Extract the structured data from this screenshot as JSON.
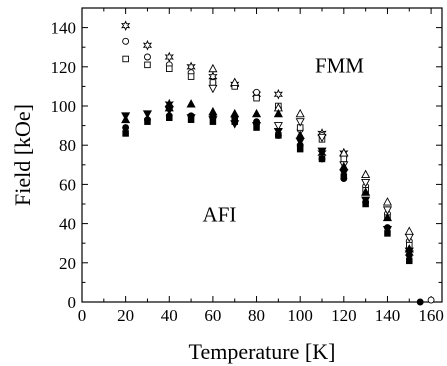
{
  "chart_data": {
    "type": "scatter",
    "title": "",
    "xlabel": "Temperature [K]",
    "ylabel": "Field [kOe]",
    "xlim": [
      0,
      165
    ],
    "ylim": [
      0,
      150
    ],
    "x_ticks": [
      0,
      20,
      40,
      60,
      80,
      100,
      120,
      140,
      160
    ],
    "y_ticks": [
      0,
      20,
      40,
      60,
      80,
      100,
      120,
      140
    ],
    "grid": false,
    "legend": "none",
    "annotations": [
      {
        "text": "FMM",
        "x": 118,
        "y": 117
      },
      {
        "text": "AFI",
        "x": 63,
        "y": 41
      }
    ],
    "series": [
      {
        "marker": "star-open",
        "points": [
          [
            20,
            141
          ],
          [
            30,
            131
          ],
          [
            40,
            125
          ],
          [
            50,
            120
          ],
          [
            60,
            115
          ],
          [
            70,
            111
          ],
          [
            80,
            106
          ],
          [
            90,
            106
          ],
          [
            110,
            86
          ],
          [
            120,
            76
          ]
        ]
      },
      {
        "marker": "circle-open",
        "points": [
          [
            20,
            133
          ],
          [
            30,
            125
          ],
          [
            40,
            121
          ],
          [
            50,
            117
          ],
          [
            60,
            112
          ],
          [
            70,
            111
          ],
          [
            80,
            107
          ],
          [
            90,
            99
          ],
          [
            100,
            88
          ],
          [
            110,
            85
          ],
          [
            120,
            74
          ],
          [
            130,
            59
          ],
          [
            140,
            45
          ],
          [
            150,
            31
          ],
          [
            160,
            1
          ]
        ]
      },
      {
        "marker": "square-open",
        "points": [
          [
            20,
            124
          ],
          [
            30,
            121
          ],
          [
            40,
            119
          ],
          [
            50,
            115
          ],
          [
            60,
            112
          ],
          [
            70,
            110
          ],
          [
            80,
            104
          ],
          [
            90,
            100
          ],
          [
            100,
            89
          ],
          [
            110,
            83
          ],
          [
            120,
            73
          ],
          [
            130,
            57
          ],
          [
            140,
            43
          ],
          [
            150,
            29
          ]
        ]
      },
      {
        "marker": "triangle-up-open",
        "points": [
          [
            60,
            119
          ],
          [
            70,
            112
          ],
          [
            90,
            99
          ],
          [
            100,
            96
          ],
          [
            120,
            76
          ],
          [
            130,
            65
          ],
          [
            140,
            51
          ],
          [
            150,
            36
          ]
        ]
      },
      {
        "marker": "triangle-down-open",
        "points": [
          [
            60,
            109
          ],
          [
            90,
            90
          ],
          [
            100,
            92
          ],
          [
            110,
            84
          ],
          [
            120,
            70
          ],
          [
            130,
            61
          ],
          [
            140,
            47
          ],
          [
            150,
            33
          ]
        ]
      },
      {
        "marker": "triangle-down-filled",
        "points": [
          [
            20,
            95
          ],
          [
            30,
            96
          ],
          [
            40,
            98
          ],
          [
            50,
            94
          ],
          [
            60,
            93
          ],
          [
            70,
            91
          ],
          [
            80,
            90
          ],
          [
            90,
            87
          ],
          [
            100,
            82
          ],
          [
            110,
            77
          ],
          [
            120,
            66
          ],
          [
            130,
            52
          ],
          [
            140,
            37
          ],
          [
            150,
            26
          ]
        ]
      },
      {
        "marker": "triangle-up-filled",
        "points": [
          [
            20,
            93
          ],
          [
            40,
            99
          ],
          [
            50,
            101
          ],
          [
            60,
            97
          ],
          [
            70,
            96
          ],
          [
            80,
            96
          ],
          [
            90,
            96
          ],
          [
            100,
            85
          ],
          [
            120,
            69
          ],
          [
            130,
            56
          ],
          [
            140,
            43
          ],
          [
            150,
            27
          ]
        ]
      },
      {
        "marker": "circle-filled",
        "points": [
          [
            20,
            89
          ],
          [
            30,
            93
          ],
          [
            40,
            95
          ],
          [
            50,
            95
          ],
          [
            60,
            95
          ],
          [
            70,
            94
          ],
          [
            80,
            92
          ],
          [
            90,
            85
          ],
          [
            100,
            80
          ],
          [
            110,
            73
          ],
          [
            120,
            63
          ],
          [
            130,
            51
          ],
          [
            140,
            38
          ],
          [
            150,
            24
          ],
          [
            155,
            0
          ]
        ]
      },
      {
        "marker": "square-filled",
        "points": [
          [
            20,
            86
          ],
          [
            30,
            92
          ],
          [
            40,
            94
          ],
          [
            50,
            93
          ],
          [
            60,
            92
          ],
          [
            70,
            92
          ],
          [
            80,
            89
          ],
          [
            90,
            85
          ],
          [
            100,
            78
          ],
          [
            110,
            73
          ],
          [
            120,
            64
          ],
          [
            130,
            50
          ],
          [
            140,
            35
          ],
          [
            150,
            21
          ]
        ]
      },
      {
        "marker": "star-filled",
        "points": [
          [
            40,
            101
          ],
          [
            110,
            76
          ],
          [
            150,
            25
          ]
        ]
      }
    ]
  }
}
